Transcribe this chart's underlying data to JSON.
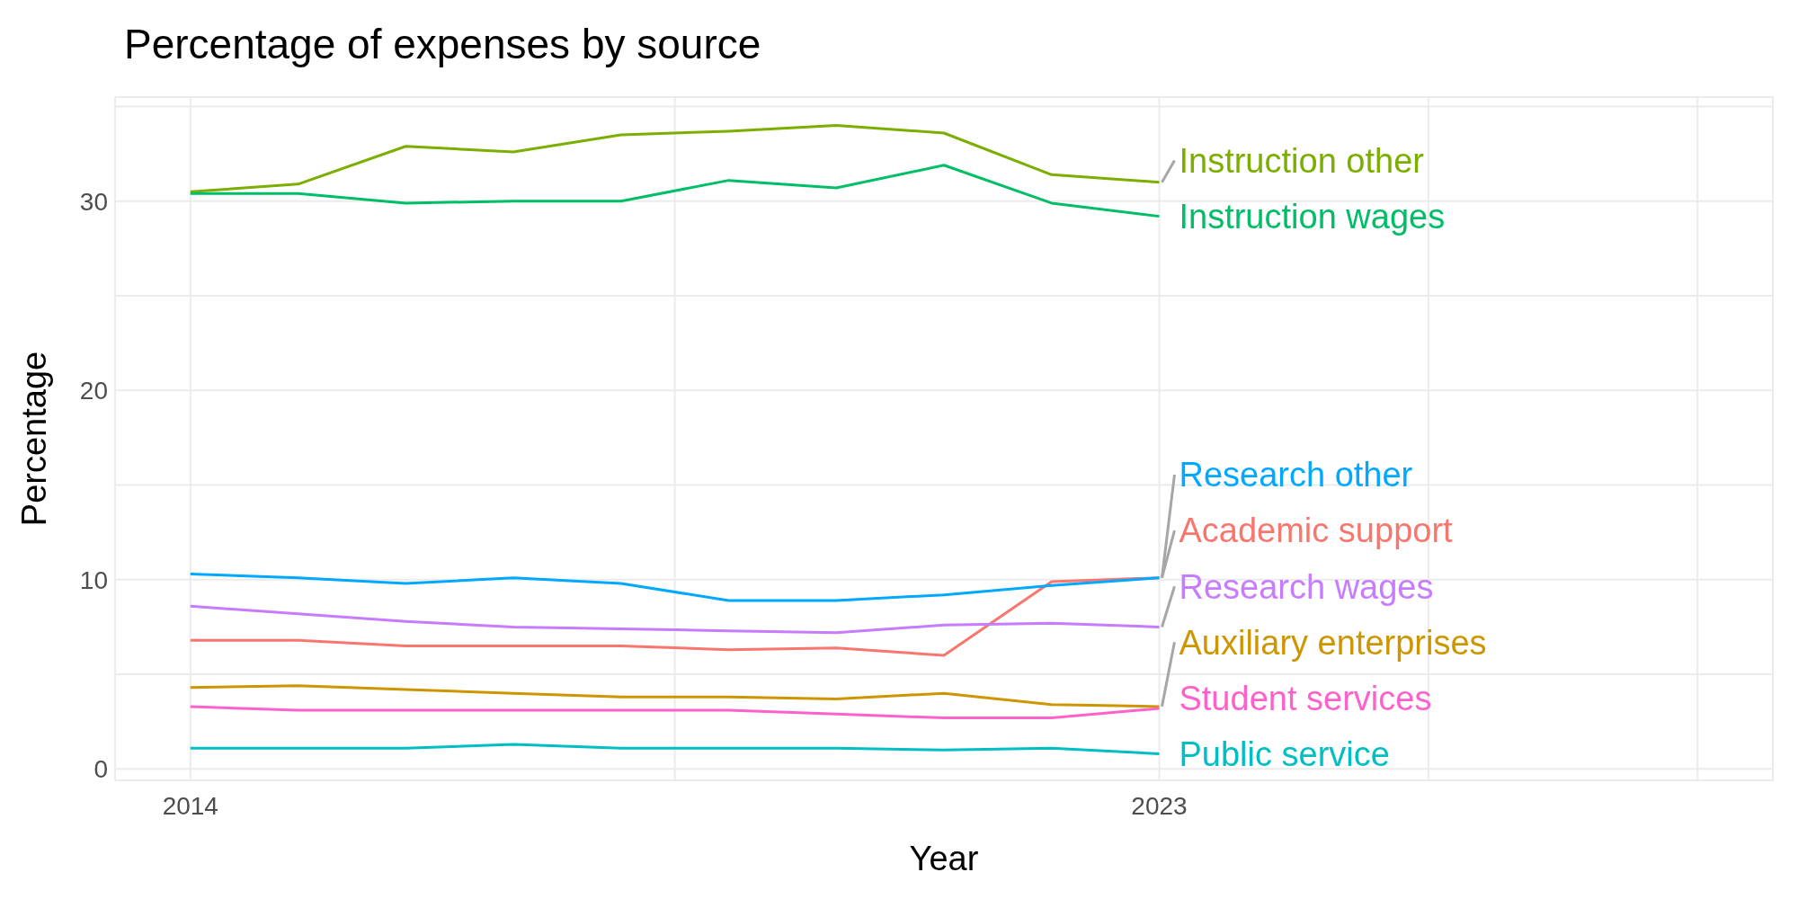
{
  "chart_data": {
    "type": "line",
    "title": "Percentage of expenses by source",
    "xlabel": "Year",
    "ylabel": "Percentage",
    "x": [
      2014,
      2015,
      2016,
      2017,
      2018,
      2019,
      2020,
      2021,
      2022,
      2023
    ],
    "xlim": [
      2013.3,
      2028.7
    ],
    "xticks": [
      2014,
      {
        "value": 2018.5,
        "label": null
      },
      2023,
      {
        "value": 2025.5,
        "label": null
      },
      {
        "value": 2028,
        "label": null
      }
    ],
    "ylim": [
      -0.6,
      35.5
    ],
    "yticks": [
      0,
      {
        "value": 5,
        "label": null
      },
      10,
      {
        "value": 15,
        "label": null
      },
      20,
      {
        "value": 25,
        "label": null
      },
      30,
      {
        "value": 35,
        "label": null
      }
    ],
    "grid": true,
    "marker": "none",
    "line_style": "solid",
    "series": [
      {
        "name": "Instruction other",
        "color": "#7cae00",
        "values": [
          30.5,
          30.9,
          32.9,
          32.6,
          33.5,
          33.7,
          34.0,
          33.6,
          31.4,
          31.0
        ]
      },
      {
        "name": "Instruction wages",
        "color": "#00be67",
        "values": [
          30.4,
          30.4,
          29.9,
          30.0,
          30.0,
          31.1,
          30.7,
          31.9,
          29.9,
          29.2
        ]
      },
      {
        "name": "Academic support",
        "color": "#f8766d",
        "values": [
          6.8,
          6.8,
          6.5,
          6.5,
          6.5,
          6.3,
          6.4,
          6.0,
          9.9,
          10.1
        ]
      },
      {
        "name": "Research other",
        "color": "#00a9ff",
        "values": [
          10.3,
          10.1,
          9.8,
          10.1,
          9.8,
          8.9,
          8.9,
          9.2,
          9.7,
          10.1
        ]
      },
      {
        "name": "Research wages",
        "color": "#c77cff",
        "values": [
          8.6,
          8.2,
          7.8,
          7.5,
          7.4,
          7.3,
          7.2,
          7.6,
          7.7,
          7.5
        ]
      },
      {
        "name": "Auxiliary enterprises",
        "color": "#cd9600",
        "values": [
          4.3,
          4.4,
          4.2,
          4.0,
          3.8,
          3.8,
          3.7,
          4.0,
          3.4,
          3.3
        ]
      },
      {
        "name": "Student services",
        "color": "#ff61cc",
        "values": [
          3.3,
          3.1,
          3.1,
          3.1,
          3.1,
          3.1,
          2.9,
          2.7,
          2.7,
          3.2
        ]
      },
      {
        "name": "Public service",
        "color": "#00bfc4",
        "values": [
          1.1,
          1.1,
          1.1,
          1.3,
          1.1,
          1.1,
          1.1,
          1.0,
          1.1,
          0.8
        ]
      }
    ]
  }
}
